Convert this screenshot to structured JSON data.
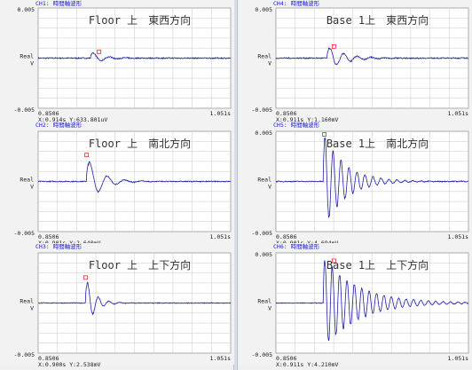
{
  "colors": {
    "waveform": "#1f1fa8",
    "grid": "#c8c8c8",
    "header": "#1a1ad0",
    "marker": "#e03030"
  },
  "chart_data": [
    {
      "type": "line",
      "header": "CH1: 時間軸波形",
      "overlay": "Floor 上　東西方向",
      "ylim": [
        -0.005,
        0.005
      ],
      "ytop": "0.005",
      "ybottom": "-0.005",
      "ylabel": [
        "Real",
        "V"
      ],
      "xstart": "0.8506",
      "xend": "1.051s",
      "xlim": [
        0.8506,
        1.051
      ],
      "cursor": "X:0.914s Y:633.801uV",
      "cursor_x": 0.914,
      "cursor_y": 0.000634,
      "wave": {
        "onset": 0.905,
        "amp": 0.00063,
        "decay": 80,
        "freq": 60,
        "noise": 6e-05
      }
    },
    {
      "type": "line",
      "header": "CH2: 時間軸波形",
      "overlay": "Floor 上　南北方向",
      "ylim": [
        -0.005,
        0.005
      ],
      "ytop": "",
      "ybottom": "-0.005",
      "ylabel": [
        "Real",
        "V"
      ],
      "xstart": "0.8506",
      "xend": "1.051s",
      "xlim": [
        0.8506,
        1.051
      ],
      "cursor": "X:0.901s Y:2.640mV",
      "cursor_x": 0.901,
      "cursor_y": 0.00264,
      "wave": {
        "onset": 0.901,
        "amp": 0.0024,
        "decay": 70,
        "freq": 55,
        "noise": 5e-05
      }
    },
    {
      "type": "line",
      "header": "CH3: 時間軸波形",
      "overlay": "Floor 上　上下方向",
      "ylim": [
        -0.005,
        0.005
      ],
      "ytop": "",
      "ybottom": "-0.005",
      "ylabel": [
        "Real",
        "V"
      ],
      "xstart": "0.8506",
      "xend": "1.051s",
      "xlim": [
        0.8506,
        1.051
      ],
      "cursor": "X:0.900s Y:2.538mV",
      "cursor_x": 0.9,
      "cursor_y": 0.002538,
      "wave": {
        "onset": 0.9,
        "amp": 0.0025,
        "decay": 110,
        "freq": 90,
        "noise": 4e-05
      }
    },
    {
      "type": "line",
      "header": "CH4: 時間軸波形",
      "overlay": "Base 1上　東西方向",
      "ylim": [
        -0.005,
        0.005
      ],
      "ytop": "0.005",
      "ybottom": "-0.005",
      "ylabel": [
        "Real",
        "V"
      ],
      "xstart": "0.8506",
      "xend": "1.051s",
      "xlim": [
        0.8506,
        1.051
      ],
      "cursor": "X:0.911s Y:1.160mV",
      "cursor_x": 0.911,
      "cursor_y": 0.00116,
      "wave": {
        "onset": 0.904,
        "amp": 0.00115,
        "decay": 55,
        "freq": 70,
        "noise": 6e-05
      }
    },
    {
      "type": "line",
      "header": "CH5: 時間軸波形",
      "overlay": "Base 1上　南北方向",
      "ylim": [
        -0.005,
        0.005
      ],
      "ytop": "0.005",
      "ybottom": "-0.005",
      "ylabel": [
        "Real",
        "V"
      ],
      "xstart": "0.8506",
      "xend": "1.051s",
      "xlim": [
        0.8506,
        1.051
      ],
      "cursor": "X:0.901s Y:4.694mV",
      "cursor_x": 0.901,
      "cursor_y": 0.004694,
      "wave": {
        "onset": 0.9,
        "amp": 0.0047,
        "decay": 45,
        "freq": 120,
        "noise": 5e-05
      }
    },
    {
      "type": "line",
      "header": "CH6: 時間軸波形",
      "overlay": "Base 1上　上下方向",
      "ylim": [
        -0.005,
        0.005
      ],
      "ytop": "0.005",
      "ybottom": "-0.005",
      "ylabel": [
        "Real",
        "V"
      ],
      "xstart": "0.8506",
      "xend": "1.051s",
      "xlim": [
        0.8506,
        1.051
      ],
      "cursor": "X:0.911s Y:4.210mV",
      "cursor_x": 0.911,
      "cursor_y": 0.00421,
      "wave": {
        "onset": 0.9,
        "amp": 0.0046,
        "decay": 28,
        "freq": 130,
        "noise": 4e-05
      }
    }
  ]
}
